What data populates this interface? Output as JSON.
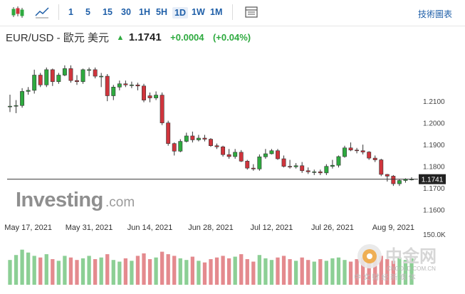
{
  "toolbar": {
    "icons": [
      "candlestick-chart-icon",
      "area-chart-icon",
      "settings-panel-icon"
    ],
    "intervals": [
      "1",
      "5",
      "15",
      "30",
      "1H",
      "5H",
      "1D",
      "1W",
      "1M"
    ],
    "active_interval": "1D",
    "right_label": "技術圖表"
  },
  "quote": {
    "symbol": "EUR/USD - 歐元 美元",
    "arrow": "▲",
    "price": "1.1741",
    "change": "+0.0004",
    "change_pct": "(+0.04%)"
  },
  "colors": {
    "up": "#2eaa3f",
    "down": "#d0343c",
    "volume_up": "#8ccf95",
    "volume_down": "#e48a8e",
    "link": "#1f5fa8"
  },
  "watermark": {
    "brand": "Investing",
    "suffix": ".com"
  },
  "overlay": {
    "name": "中金网",
    "domain": "CNGOLD.COM.CN",
    "tagline": "中 文 财 经 新 媒 体"
  },
  "chart_data": {
    "type": "candlestick",
    "dates": [
      "2021-05-12",
      "2021-05-13",
      "2021-05-14",
      "2021-05-17",
      "2021-05-18",
      "2021-05-19",
      "2021-05-20",
      "2021-05-21",
      "2021-05-24",
      "2021-05-25",
      "2021-05-26",
      "2021-05-27",
      "2021-05-28",
      "2021-05-31",
      "2021-06-01",
      "2021-06-02",
      "2021-06-03",
      "2021-06-04",
      "2021-06-07",
      "2021-06-08",
      "2021-06-09",
      "2021-06-10",
      "2021-06-11",
      "2021-06-14",
      "2021-06-15",
      "2021-06-16",
      "2021-06-17",
      "2021-06-18",
      "2021-06-21",
      "2021-06-22",
      "2021-06-23",
      "2021-06-24",
      "2021-06-25",
      "2021-06-28",
      "2021-06-29",
      "2021-06-30",
      "2021-07-01",
      "2021-07-02",
      "2021-07-05",
      "2021-07-06",
      "2021-07-07",
      "2021-07-08",
      "2021-07-09",
      "2021-07-12",
      "2021-07-13",
      "2021-07-14",
      "2021-07-15",
      "2021-07-16",
      "2021-07-19",
      "2021-07-20",
      "2021-07-21",
      "2021-07-22",
      "2021-07-23",
      "2021-07-26",
      "2021-07-27",
      "2021-07-28",
      "2021-07-29",
      "2021-07-30",
      "2021-08-02",
      "2021-08-03",
      "2021-08-04",
      "2021-08-05",
      "2021-08-06",
      "2021-08-09",
      "2021-08-10",
      "2021-08-11",
      "2021-08-12"
    ],
    "open": [
      1.2077,
      1.2077,
      1.208,
      1.2145,
      1.215,
      1.222,
      1.2175,
      1.2245,
      1.219,
      1.222,
      1.225,
      1.2195,
      1.219,
      1.2245,
      1.2245,
      1.2215,
      1.2215,
      1.2125,
      1.2165,
      1.218,
      1.2175,
      1.2175,
      1.217,
      1.2125,
      1.2115,
      1.2128,
      1.2,
      1.1905,
      1.187,
      1.1915,
      1.194,
      1.1922,
      1.193,
      1.1925,
      1.1895,
      1.189,
      1.1854,
      1.1845,
      1.1865,
      1.1824,
      1.1792,
      1.1788,
      1.1844,
      1.1858,
      1.1872,
      1.1835,
      1.18,
      1.1798,
      1.1803,
      1.178,
      1.1775,
      1.1775,
      1.177,
      1.18,
      1.1805,
      1.1845,
      1.1885,
      1.1875,
      1.1872,
      1.1866,
      1.1838,
      1.183,
      1.1763,
      1.1755,
      1.172,
      1.1735,
      1.1741
    ],
    "close": [
      1.2077,
      1.208,
      1.2145,
      1.215,
      1.222,
      1.2175,
      1.2245,
      1.219,
      1.222,
      1.225,
      1.2195,
      1.219,
      1.2245,
      1.2245,
      1.2215,
      1.2215,
      1.2125,
      1.2165,
      1.218,
      1.2175,
      1.2175,
      1.217,
      1.2105,
      1.2115,
      1.2128,
      1.2,
      1.1905,
      1.187,
      1.1915,
      1.194,
      1.1922,
      1.193,
      1.1925,
      1.1895,
      1.189,
      1.1854,
      1.1845,
      1.1865,
      1.1824,
      1.1792,
      1.1788,
      1.1844,
      1.1858,
      1.1872,
      1.1835,
      1.18,
      1.1798,
      1.1803,
      1.178,
      1.1775,
      1.1775,
      1.177,
      1.18,
      1.1805,
      1.1845,
      1.1885,
      1.1875,
      1.1872,
      1.1866,
      1.1838,
      1.183,
      1.1763,
      1.1755,
      1.172,
      1.1735,
      1.1741,
      1.1741
    ],
    "high": [
      1.213,
      1.2105,
      1.216,
      1.2165,
      1.2245,
      1.223,
      1.2255,
      1.225,
      1.223,
      1.2265,
      1.2265,
      1.222,
      1.225,
      1.2255,
      1.2255,
      1.223,
      1.2225,
      1.2175,
      1.2195,
      1.2195,
      1.219,
      1.2185,
      1.218,
      1.214,
      1.2145,
      1.214,
      1.201,
      1.191,
      1.1925,
      1.1955,
      1.196,
      1.1945,
      1.1945,
      1.193,
      1.1905,
      1.1895,
      1.188,
      1.188,
      1.1875,
      1.183,
      1.181,
      1.1855,
      1.188,
      1.188,
      1.188,
      1.185,
      1.183,
      1.1815,
      1.182,
      1.1795,
      1.1785,
      1.1785,
      1.181,
      1.183,
      1.185,
      1.1895,
      1.191,
      1.1885,
      1.19,
      1.187,
      1.185,
      1.1835,
      1.1765,
      1.176,
      1.174,
      1.1745,
      1.175
    ],
    "low": [
      1.205,
      1.2045,
      1.207,
      1.213,
      1.2135,
      1.2165,
      1.2165,
      1.217,
      1.218,
      1.2215,
      1.2185,
      1.2175,
      1.218,
      1.2215,
      1.2205,
      1.2165,
      1.21,
      1.2105,
      1.215,
      1.2165,
      1.216,
      1.215,
      1.2095,
      1.2095,
      1.2105,
      1.199,
      1.1895,
      1.185,
      1.1865,
      1.191,
      1.191,
      1.1915,
      1.1915,
      1.189,
      1.188,
      1.1845,
      1.1835,
      1.1835,
      1.182,
      1.1785,
      1.178,
      1.178,
      1.1835,
      1.1855,
      1.183,
      1.1795,
      1.179,
      1.179,
      1.177,
      1.1765,
      1.176,
      1.176,
      1.176,
      1.179,
      1.1795,
      1.184,
      1.187,
      1.186,
      1.1855,
      1.183,
      1.182,
      1.1755,
      1.173,
      1.171,
      1.171,
      1.1725,
      1.1735
    ],
    "volume": [
      0.6,
      0.72,
      0.85,
      0.78,
      0.7,
      0.66,
      0.74,
      0.62,
      0.58,
      0.7,
      0.66,
      0.6,
      0.64,
      0.7,
      0.62,
      0.66,
      0.74,
      0.6,
      0.56,
      0.64,
      0.58,
      0.7,
      0.76,
      0.62,
      0.66,
      0.8,
      0.74,
      0.7,
      0.64,
      0.6,
      0.68,
      0.58,
      0.54,
      0.62,
      0.66,
      0.7,
      0.64,
      0.68,
      0.74,
      0.62,
      0.56,
      0.72,
      0.64,
      0.6,
      0.66,
      0.7,
      0.62,
      0.58,
      0.66,
      0.6,
      0.56,
      0.62,
      0.58,
      0.64,
      0.66,
      0.6,
      0.56,
      0.62,
      0.66,
      0.6,
      0.64,
      0.7,
      0.62,
      0.58,
      0.66,
      0.6,
      0.64
    ],
    "y_axis": {
      "ticks": [
        "1.1600",
        "1.1700",
        "1.1800",
        "1.1900",
        "1.2000",
        "1.2100"
      ],
      "range": [
        1.155,
        1.232
      ]
    },
    "x_axis": {
      "labels": [
        "May 17, 2021",
        "May 31, 2021",
        "Jun 14, 2021",
        "Jun 28, 2021",
        "Jul 12, 2021",
        "Jul 26, 2021",
        "Aug 9, 2021"
      ],
      "label_dates": [
        "2021-05-17",
        "2021-05-31",
        "2021-06-14",
        "2021-06-28",
        "2021-07-12",
        "2021-07-26",
        "2021-08-09"
      ]
    },
    "current_price_label": "1.1741",
    "current_price": 1.1741,
    "volume_axis_label": "150.0K",
    "grid": false
  }
}
